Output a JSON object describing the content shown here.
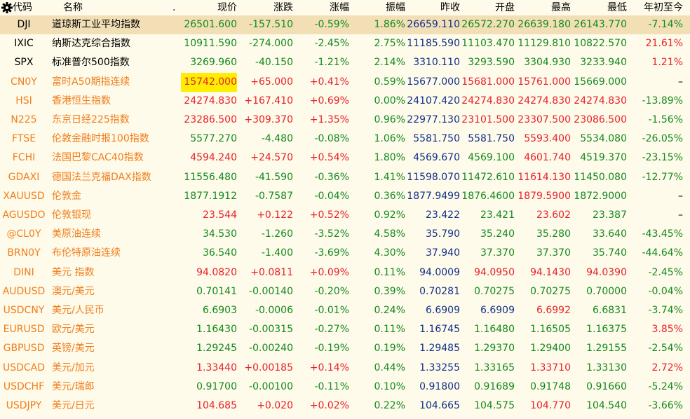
{
  "header": {
    "settings_icon": "gear-icon",
    "columns": [
      "代码",
      "名称",
      ".",
      "现价",
      "涨跌",
      "涨幅",
      "振幅",
      "昨收",
      "开盘",
      "最高",
      "最低",
      "年初至今"
    ]
  },
  "colors": {
    "up": "#e8202a",
    "down": "#118a1f",
    "prev_close": "#10308a",
    "code_orange": "#f07d1c",
    "selected_row": "#f3dfb6",
    "highlight": "#ffee00"
  },
  "rows": [
    {
      "code": "DJI",
      "name": "道琼斯工业平均指数",
      "price": "26501.600",
      "chg": "-157.510",
      "pct": "-0.59%",
      "amp": "1.86%",
      "prev": "26659.110",
      "open": "26572.270",
      "high": "26639.180",
      "low": "26143.770",
      "ytd": "-7.14%",
      "c": {
        "code": "blk",
        "name": "blk",
        "price": "down",
        "chg": "down",
        "pct": "down",
        "open": "down",
        "high": "down",
        "low": "down",
        "ytd": "down"
      },
      "selected": true
    },
    {
      "code": "IXIC",
      "name": "纳斯达克综合指数",
      "price": "10911.590",
      "chg": "-274.000",
      "pct": "-2.45%",
      "amp": "2.75%",
      "prev": "11185.590",
      "open": "11103.470",
      "high": "11129.810",
      "low": "10822.570",
      "ytd": "21.61%",
      "c": {
        "code": "blk",
        "name": "blk",
        "price": "down",
        "chg": "down",
        "pct": "down",
        "open": "down",
        "high": "down",
        "low": "down",
        "ytd": "up"
      }
    },
    {
      "code": "SPX",
      "name": "标准普尔500指数",
      "price": "3269.960",
      "chg": "-40.150",
      "pct": "-1.21%",
      "amp": "2.14%",
      "prev": "3310.110",
      "open": "3293.590",
      "high": "3304.930",
      "low": "3233.940",
      "ytd": "1.21%",
      "c": {
        "code": "blk",
        "name": "blk",
        "price": "down",
        "chg": "down",
        "pct": "down",
        "open": "down",
        "high": "down",
        "low": "down",
        "ytd": "up"
      }
    },
    {
      "code": "CN0Y",
      "name": "富时A50期指连续",
      "price": "15742.000",
      "chg": "+65.000",
      "pct": "+0.41%",
      "amp": "0.59%",
      "prev": "15677.000",
      "open": "15681.000",
      "high": "15761.000",
      "low": "15669.000",
      "ytd": "–",
      "c": {
        "code": "orange",
        "name": "orange",
        "price": "up",
        "chg": "up",
        "pct": "up",
        "open": "up",
        "high": "up",
        "low": "down",
        "ytd": "blk"
      },
      "hl": true
    },
    {
      "code": "HSI",
      "name": "香港恒生指数",
      "price": "24274.830",
      "chg": "+167.410",
      "pct": "+0.69%",
      "amp": "0.00%",
      "prev": "24107.420",
      "open": "24274.830",
      "high": "24274.830",
      "low": "24274.830",
      "ytd": "-13.89%",
      "c": {
        "code": "orange",
        "name": "orange",
        "price": "up",
        "chg": "up",
        "pct": "up",
        "open": "up",
        "high": "up",
        "low": "up",
        "ytd": "down"
      }
    },
    {
      "code": "N225",
      "name": "东京日经225指数",
      "price": "23286.500",
      "chg": "+309.370",
      "pct": "+1.35%",
      "amp": "0.96%",
      "prev": "22977.130",
      "open": "23101.500",
      "high": "23307.500",
      "low": "23086.500",
      "ytd": "-1.56%",
      "c": {
        "code": "orange",
        "name": "orange",
        "price": "up",
        "chg": "up",
        "pct": "up",
        "open": "up",
        "high": "up",
        "low": "up",
        "ytd": "down"
      }
    },
    {
      "code": "FTSE",
      "name": "伦敦金融时报100指数",
      "price": "5577.270",
      "chg": "-4.480",
      "pct": "-0.08%",
      "amp": "1.06%",
      "prev": "5581.750",
      "open": "5581.750",
      "high": "5593.400",
      "low": "5534.080",
      "ytd": "-26.05%",
      "c": {
        "code": "orange",
        "name": "orange",
        "price": "down",
        "chg": "down",
        "pct": "down",
        "open": "blue",
        "high": "up",
        "low": "down",
        "ytd": "down"
      }
    },
    {
      "code": "FCHI",
      "name": "法国巴黎CAC40指数",
      "price": "4594.240",
      "chg": "+24.570",
      "pct": "+0.54%",
      "amp": "1.80%",
      "prev": "4569.670",
      "open": "4569.100",
      "high": "4601.740",
      "low": "4519.370",
      "ytd": "-23.15%",
      "c": {
        "code": "orange",
        "name": "orange",
        "price": "up",
        "chg": "up",
        "pct": "up",
        "open": "down",
        "high": "up",
        "low": "down",
        "ytd": "down"
      }
    },
    {
      "code": "GDAXI",
      "name": "德国法兰克福DAX指数",
      "price": "11556.480",
      "chg": "-41.590",
      "pct": "-0.36%",
      "amp": "1.41%",
      "prev": "11598.070",
      "open": "11472.610",
      "high": "11614.130",
      "low": "11450.080",
      "ytd": "-12.77%",
      "c": {
        "code": "orange",
        "name": "orange",
        "price": "down",
        "chg": "down",
        "pct": "down",
        "open": "down",
        "high": "up",
        "low": "down",
        "ytd": "down"
      }
    },
    {
      "code": "XAUUSD",
      "name": "伦敦金",
      "price": "1877.1912",
      "chg": "-0.7587",
      "pct": "-0.04%",
      "amp": "0.36%",
      "prev": "1877.9499",
      "open": "1876.4600",
      "high": "1879.5900",
      "low": "1872.9000",
      "ytd": "–",
      "c": {
        "code": "orange",
        "name": "orange",
        "price": "down",
        "chg": "down",
        "pct": "down",
        "open": "down",
        "high": "up",
        "low": "down",
        "ytd": "blk"
      }
    },
    {
      "code": "AGUSDO",
      "name": "伦敦银现",
      "price": "23.544",
      "chg": "+0.122",
      "pct": "+0.52%",
      "amp": "0.92%",
      "prev": "23.422",
      "open": "23.421",
      "high": "23.602",
      "low": "23.387",
      "ytd": "–",
      "c": {
        "code": "orange",
        "name": "orange",
        "price": "up",
        "chg": "up",
        "pct": "up",
        "open": "down",
        "high": "up",
        "low": "down",
        "ytd": "blk"
      }
    },
    {
      "code": "@CL0Y",
      "name": "美原油连续",
      "price": "34.530",
      "chg": "-1.260",
      "pct": "-3.52%",
      "amp": "4.58%",
      "prev": "35.790",
      "open": "35.240",
      "high": "35.280",
      "low": "33.640",
      "ytd": "-43.45%",
      "c": {
        "code": "orange",
        "name": "orange",
        "price": "down",
        "chg": "down",
        "pct": "down",
        "open": "down",
        "high": "down",
        "low": "down",
        "ytd": "down"
      }
    },
    {
      "code": "BRN0Y",
      "name": "布伦特原油连续",
      "price": "36.540",
      "chg": "-1.400",
      "pct": "-3.69%",
      "amp": "4.30%",
      "prev": "37.940",
      "open": "37.370",
      "high": "37.370",
      "low": "35.740",
      "ytd": "-44.64%",
      "c": {
        "code": "orange",
        "name": "orange",
        "price": "down",
        "chg": "down",
        "pct": "down",
        "open": "down",
        "high": "down",
        "low": "down",
        "ytd": "down"
      }
    },
    {
      "code": "DINI",
      "name": "美元 指数",
      "price": "94.0820",
      "chg": "+0.0811",
      "pct": "+0.09%",
      "amp": "0.11%",
      "prev": "94.0009",
      "open": "94.0950",
      "high": "94.1430",
      "low": "94.0390",
      "ytd": "-2.45%",
      "c": {
        "code": "orange",
        "name": "orange",
        "price": "up",
        "chg": "up",
        "pct": "up",
        "open": "up",
        "high": "up",
        "low": "up",
        "ytd": "down"
      }
    },
    {
      "code": "AUDUSD",
      "name": "澳元/美元",
      "price": "0.70141",
      "chg": "-0.00140",
      "pct": "-0.20%",
      "amp": "0.39%",
      "prev": "0.70281",
      "open": "0.70275",
      "high": "0.70275",
      "low": "0.70000",
      "ytd": "-0.04%",
      "c": {
        "code": "orange",
        "name": "orange",
        "price": "down",
        "chg": "down",
        "pct": "down",
        "open": "down",
        "high": "down",
        "low": "down",
        "ytd": "down"
      }
    },
    {
      "code": "USDCNY",
      "name": "美元/人民币",
      "price": "6.6903",
      "chg": "-0.0006",
      "pct": "-0.01%",
      "amp": "0.24%",
      "prev": "6.6909",
      "open": "6.6909",
      "high": "6.6992",
      "low": "6.6831",
      "ytd": "-3.74%",
      "c": {
        "code": "orange",
        "name": "orange",
        "price": "down",
        "chg": "down",
        "pct": "down",
        "open": "blue",
        "high": "up",
        "low": "down",
        "ytd": "down"
      }
    },
    {
      "code": "EURUSD",
      "name": "欧元/美元",
      "price": "1.16430",
      "chg": "-0.00315",
      "pct": "-0.27%",
      "amp": "0.11%",
      "prev": "1.16745",
      "open": "1.16480",
      "high": "1.16505",
      "low": "1.16375",
      "ytd": "3.85%",
      "c": {
        "code": "orange",
        "name": "orange",
        "price": "down",
        "chg": "down",
        "pct": "down",
        "open": "down",
        "high": "down",
        "low": "down",
        "ytd": "up"
      }
    },
    {
      "code": "GBPUSD",
      "name": "英镑/美元",
      "price": "1.29245",
      "chg": "-0.00240",
      "pct": "-0.19%",
      "amp": "0.19%",
      "prev": "1.29485",
      "open": "1.29370",
      "high": "1.29400",
      "low": "1.29155",
      "ytd": "-2.54%",
      "c": {
        "code": "orange",
        "name": "orange",
        "price": "down",
        "chg": "down",
        "pct": "down",
        "open": "down",
        "high": "down",
        "low": "down",
        "ytd": "down"
      }
    },
    {
      "code": "USDCAD",
      "name": "美元/加元",
      "price": "1.33440",
      "chg": "+0.00185",
      "pct": "+0.14%",
      "amp": "0.44%",
      "prev": "1.33255",
      "open": "1.33165",
      "high": "1.33710",
      "low": "1.33130",
      "ytd": "2.72%",
      "c": {
        "code": "orange",
        "name": "orange",
        "price": "up",
        "chg": "up",
        "pct": "up",
        "open": "down",
        "high": "up",
        "low": "down",
        "ytd": "up"
      }
    },
    {
      "code": "USDCHF",
      "name": "美元/瑞郎",
      "price": "0.91700",
      "chg": "-0.00100",
      "pct": "-0.11%",
      "amp": "0.10%",
      "prev": "0.91800",
      "open": "0.91689",
      "high": "0.91748",
      "low": "0.91660",
      "ytd": "-5.24%",
      "c": {
        "code": "orange",
        "name": "orange",
        "price": "down",
        "chg": "down",
        "pct": "down",
        "open": "down",
        "high": "down",
        "low": "down",
        "ytd": "down"
      }
    },
    {
      "code": "USDJPY",
      "name": "美元/日元",
      "price": "104.685",
      "chg": "+0.020",
      "pct": "+0.02%",
      "amp": "0.22%",
      "prev": "104.665",
      "open": "104.575",
      "high": "104.770",
      "low": "104.540",
      "ytd": "-3.66%",
      "c": {
        "code": "orange",
        "name": "orange",
        "price": "up",
        "chg": "up",
        "pct": "up",
        "open": "down",
        "high": "up",
        "low": "down",
        "ytd": "down"
      }
    }
  ]
}
